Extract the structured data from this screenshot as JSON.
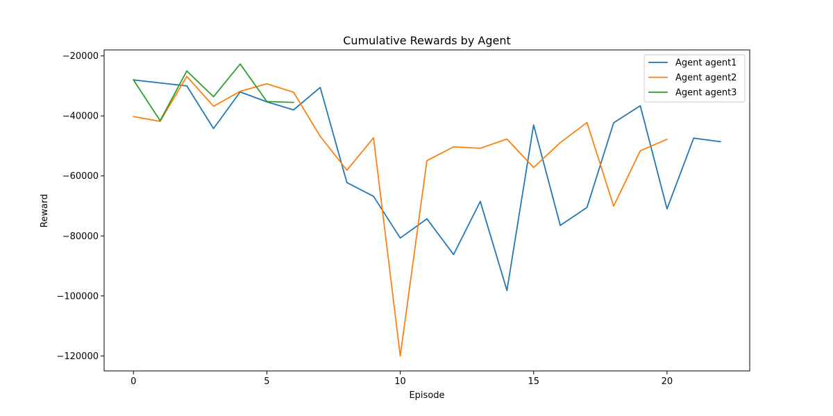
{
  "chart_data": {
    "type": "line",
    "title": "Cumulative Rewards by Agent",
    "xlabel": "Episode",
    "ylabel": "Reward",
    "xlim": [
      -1.1,
      23.1
    ],
    "ylim": [
      -125000,
      -18000
    ],
    "xticks": [
      0,
      5,
      10,
      15,
      20
    ],
    "yticks": [
      -20000,
      -40000,
      -60000,
      -80000,
      -100000,
      -120000
    ],
    "grid": false,
    "legend_position": "top-right",
    "series": [
      {
        "name": "Agent agent1",
        "color": "#1f77b4",
        "x": [
          0,
          1,
          2,
          3,
          4,
          5,
          6,
          7,
          8,
          9,
          10,
          11,
          12,
          13,
          14,
          15,
          16,
          17,
          18,
          19,
          20,
          21,
          22
        ],
        "y": [
          -28000,
          -29000,
          -30000,
          -44200,
          -32000,
          -35300,
          -38000,
          -30500,
          -62200,
          -66800,
          -80700,
          -74300,
          -86200,
          -68500,
          -98200,
          -43000,
          -76500,
          -70500,
          -42300,
          -36600,
          -71000,
          -47400,
          -48600
        ]
      },
      {
        "name": "Agent agent2",
        "color": "#ff7f0e",
        "x": [
          0,
          1,
          2,
          3,
          4,
          5,
          6,
          7,
          8,
          9,
          10,
          11,
          12,
          13,
          14,
          15,
          16,
          17,
          18,
          19,
          20
        ],
        "y": [
          -40200,
          -41800,
          -26800,
          -36800,
          -31800,
          -29300,
          -32100,
          -46800,
          -58100,
          -47300,
          -120000,
          -54900,
          -50300,
          -50800,
          -47700,
          -57200,
          -48900,
          -42200,
          -70100,
          -51600,
          -47800
        ]
      },
      {
        "name": "Agent agent3",
        "color": "#2ca02c",
        "x": [
          0,
          1,
          2,
          3,
          4,
          5,
          6
        ],
        "y": [
          -28000,
          -41600,
          -25000,
          -33600,
          -22700,
          -35200,
          -35500
        ]
      }
    ]
  }
}
